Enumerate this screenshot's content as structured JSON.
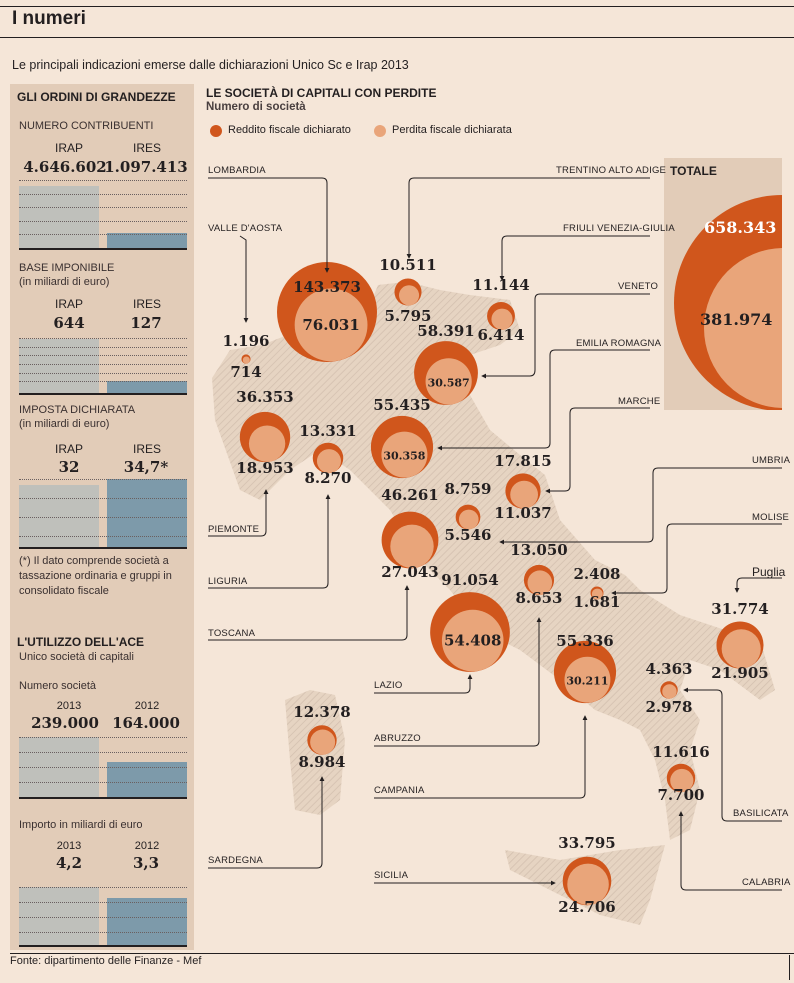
{
  "header": {
    "title": "I numeri",
    "subtitle": "Le principali indicazioni emerse dalle dichiarazioni Unico Sc e Irap 2013"
  },
  "left_panel": {
    "title": "GLI ORDINI DI GRANDEZZE",
    "sections": [
      {
        "label": "NUMERO CONTRIBUENTI",
        "unit": "",
        "irap_label": "IRAP",
        "ires_label": "IRES",
        "irap": "4.646.602",
        "ires": "1.097.413",
        "irap_value": 4646602,
        "ires_value": 1097413
      },
      {
        "label": "BASE IMPONIBILE",
        "unit": "(in miliardi di euro)",
        "irap_label": "IRAP",
        "ires_label": "IRES",
        "irap": "644",
        "ires": "127",
        "irap_value": 644,
        "ires_value": 127
      },
      {
        "label": "IMPOSTA DICHIARATA",
        "unit": "(in miliardi di euro)",
        "irap_label": "IRAP",
        "ires_label": "IRES",
        "irap": "32",
        "ires": "34,7*",
        "irap_value": 32,
        "ires_value": 34.7
      }
    ],
    "footnote": "(*) Il dato comprende società a tassazione ordinaria e gruppi in consolidato fiscale",
    "ace": {
      "title": "L'UTILIZZO DELL'ACE",
      "subtitle": "Unico società di capitali",
      "numero": {
        "label": "Numero società",
        "y2013_label": "2013",
        "y2012_label": "2012",
        "v2013": "239.000",
        "v2012": "164.000",
        "n2013": 239000,
        "n2012": 164000
      },
      "importo": {
        "label": "Importo in miliardi di euro",
        "y2013_label": "2013",
        "y2012_label": "2012",
        "v2013": "4,2",
        "v2012": "3,3",
        "n2013": 4.2,
        "n2012": 3.3
      }
    }
  },
  "map": {
    "title": "LE SOCIETÀ DI CAPITALI CON PERDITE",
    "subtitle": "Numero di società",
    "legend": {
      "reddito": "Reddito fiscale dichiarato",
      "perdita": "Perdita fiscale dichiarata"
    },
    "colors": {
      "reddito": "#d0561c",
      "perdita": "#e9a57a",
      "panel": "#e2ccb8",
      "background": "#f5e6d8"
    },
    "totale": {
      "label": "TOTALE",
      "reddito": "658.343",
      "perdita": "381.974",
      "reddito_n": 658343,
      "perdita_n": 381974
    }
  },
  "chart_data": {
    "type": "bubble-map",
    "series": [
      {
        "name": "Reddito fiscale dichiarato"
      },
      {
        "name": "Perdita fiscale dichiarata"
      }
    ],
    "regions": [
      {
        "name": "LOMBARDIA",
        "reddito": "143.373",
        "perdita": "76.031"
      },
      {
        "name": "VALLE D'AOSTA",
        "reddito": "1.196",
        "perdita": "714"
      },
      {
        "name": "TRENTINO ALTO ADIGE",
        "reddito": "10.511",
        "perdita": "5.795"
      },
      {
        "name": "FRIULI VENEZIA-GIULIA",
        "reddito": "11.144",
        "perdita": "6.414"
      },
      {
        "name": "VENETO",
        "reddito": "58.391",
        "perdita": "30.587"
      },
      {
        "name": "PIEMONTE",
        "reddito": "36.353",
        "perdita": "18.953"
      },
      {
        "name": "LIGURIA",
        "reddito": "13.331",
        "perdita": "8.270"
      },
      {
        "name": "EMILIA ROMAGNA",
        "reddito": "55.435",
        "perdita": "30.358"
      },
      {
        "name": "MARCHE",
        "reddito": "17.815",
        "perdita": "11.037"
      },
      {
        "name": "UMBRIA",
        "reddito": "8.759",
        "perdita": "5.546"
      },
      {
        "name": "TOSCANA",
        "reddito": "46.261",
        "perdita": "27.043"
      },
      {
        "name": "ABRUZZO",
        "reddito": "13.050",
        "perdita": "8.653"
      },
      {
        "name": "MOLISE",
        "reddito": "2.408",
        "perdita": "1.681"
      },
      {
        "name": "LAZIO",
        "reddito": "91.054",
        "perdita": "54.408"
      },
      {
        "name": "CAMPANIA",
        "reddito": "55.336",
        "perdita": "30.211"
      },
      {
        "name": "Puglia",
        "reddito": "31.774",
        "perdita": "21.905"
      },
      {
        "name": "BASILICATA",
        "reddito": "4.363",
        "perdita": "2.978"
      },
      {
        "name": "CALABRIA",
        "reddito": "11.616",
        "perdita": "7.700"
      },
      {
        "name": "SARDEGNA",
        "reddito": "12.378",
        "perdita": "8.984"
      },
      {
        "name": "SICILIA",
        "reddito": "33.795",
        "perdita": "24.706"
      }
    ]
  },
  "footer": {
    "source": "Fonte: dipartimento delle Finanze - Mef"
  }
}
